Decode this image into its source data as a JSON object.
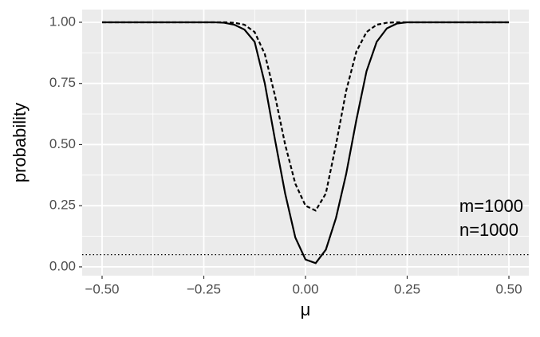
{
  "chart_data": {
    "type": "line",
    "xlabel": "μ",
    "ylabel": "probability",
    "x": [
      -0.5,
      -0.475,
      -0.45,
      -0.425,
      -0.4,
      -0.375,
      -0.35,
      -0.325,
      -0.3,
      -0.275,
      -0.25,
      -0.225,
      -0.2,
      -0.175,
      -0.15,
      -0.125,
      -0.1,
      -0.075,
      -0.05,
      -0.025,
      0,
      0.025,
      0.05,
      0.075,
      0.1,
      0.125,
      0.15,
      0.175,
      0.2,
      0.225,
      0.25,
      0.275,
      0.3,
      0.325,
      0.35,
      0.375,
      0.4,
      0.425,
      0.45,
      0.475,
      0.5
    ],
    "series": [
      {
        "color": "#000000",
        "dash": "solid",
        "values": [
          1,
          1,
          1,
          1,
          1,
          1,
          1,
          1,
          1,
          1,
          1,
          1,
          0.998,
          0.99,
          0.97,
          0.92,
          0.75,
          0.52,
          0.3,
          0.12,
          0.03,
          0.015,
          0.07,
          0.2,
          0.38,
          0.6,
          0.8,
          0.92,
          0.975,
          0.995,
          1,
          1,
          1,
          1,
          1,
          1,
          1,
          1,
          1,
          1,
          1
        ]
      },
      {
        "color": "#000000",
        "dash": "dashed",
        "values": [
          1,
          1,
          1,
          1,
          1,
          1,
          1,
          1,
          1,
          1,
          1,
          1,
          1,
          0.998,
          0.99,
          0.96,
          0.87,
          0.7,
          0.5,
          0.34,
          0.25,
          0.23,
          0.3,
          0.5,
          0.72,
          0.88,
          0.96,
          0.99,
          0.998,
          1,
          1,
          1,
          1,
          1,
          1,
          1,
          1,
          1,
          1,
          1,
          1
        ]
      }
    ],
    "hline": 0.05,
    "annotations": [
      "m=1000",
      "n=1000"
    ],
    "xlim": [
      -0.549,
      0.549
    ],
    "ylim": [
      -0.036,
      1.052
    ],
    "xticks": [
      {
        "value": -0.5,
        "label": "−0.50"
      },
      {
        "value": -0.25,
        "label": "−0.25"
      },
      {
        "value": 0,
        "label": "0.00"
      },
      {
        "value": 0.25,
        "label": "0.25"
      },
      {
        "value": 0.5,
        "label": "0.50"
      }
    ],
    "yticks": [
      {
        "value": 0,
        "label": "0.00"
      },
      {
        "value": 0.25,
        "label": "0.25"
      },
      {
        "value": 0.5,
        "label": "0.50"
      },
      {
        "value": 0.75,
        "label": "0.75"
      },
      {
        "value": 1,
        "label": "1.00"
      }
    ],
    "grid": true
  }
}
